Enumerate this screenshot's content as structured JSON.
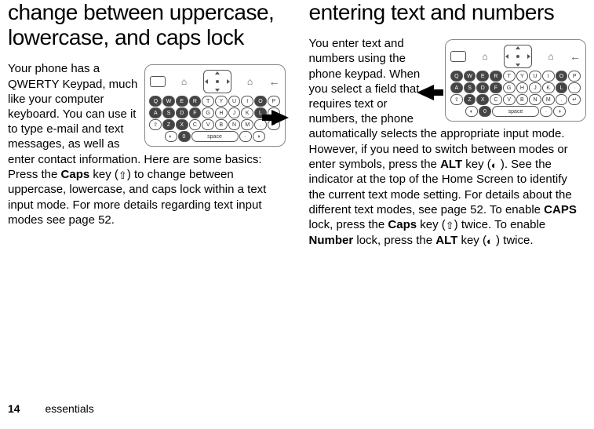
{
  "left": {
    "heading": "change between uppercase, lowercase, and caps lock",
    "para_html": "Your phone has a QWERTY Keypad, much like your computer keyboard. You can use it to type e-mail and text messages, as well as enter contact information. Here are some basics: Press the <b>Caps</b> key (<span class=\"glyph\">⇧</span>) to change between uppercase, lowercase, and caps lock within a text input mode. For more details regarding text input modes see page 52."
  },
  "right": {
    "heading": "entering text and numbers",
    "para_html": "You enter text and numbers using the phone keypad. When you select a field that requires text or numbers, the phone automatically selects the appropriate input mode. However, if you need to switch between modes or enter symbols, press the <b>ALT</b> key (<span class=\"glyph\">◐</span> ). See the indicator at the top of the Home Screen to identify the current text mode setting. For details about the different text modes, see page 52. To enable <b>CAPS</b> lock, press the <b>Caps</b> key (<span class=\"glyph\">⇧</span>) twice. To enable <b>Number</b> lock, press the <b>ALT</b> key (<span class=\"glyph\">◐</span> ) twice."
  },
  "keypad": {
    "home_glyph": "⌂",
    "back_glyph": "←",
    "rows": [
      [
        "Q",
        "W",
        "E",
        "R",
        "T",
        "Y",
        "U",
        "I",
        "O",
        "P"
      ],
      [
        "A",
        "S",
        "D",
        "F",
        "G",
        "H",
        "J",
        "K",
        "L",
        "·"
      ],
      [
        "⇧",
        "Z",
        "X",
        "C",
        "V",
        "B",
        "N",
        "M",
        ".",
        "↵"
      ],
      [
        "◐",
        "0",
        "space",
        "·",
        "◑"
      ]
    ],
    "space_label": "space"
  },
  "footer": {
    "page": "14",
    "section": "essentials"
  }
}
